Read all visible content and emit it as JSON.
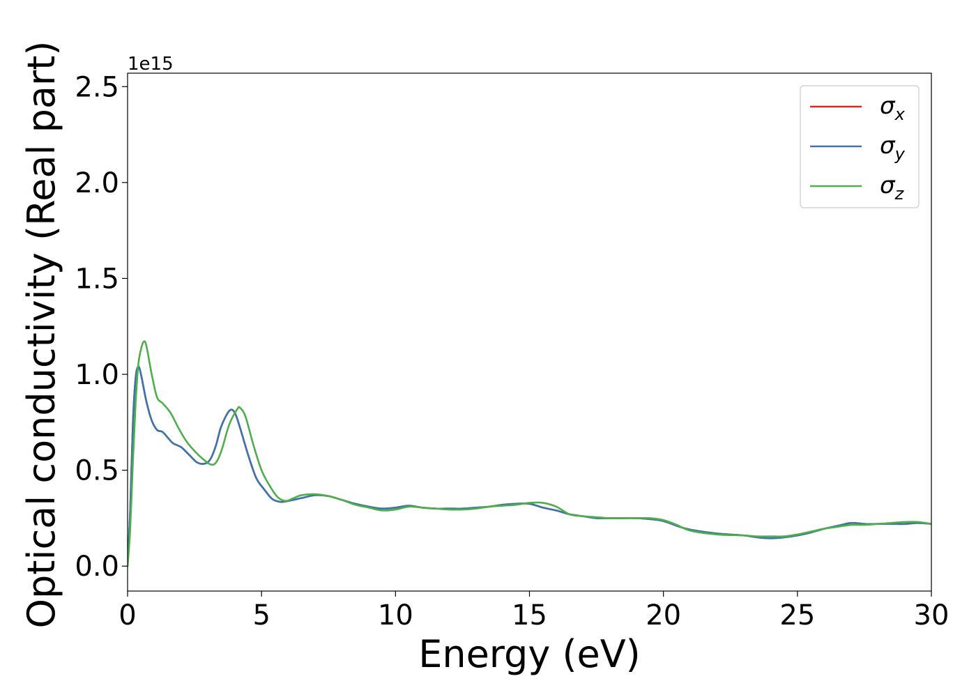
{
  "chart_data": {
    "type": "line",
    "xlabel": "Energy (eV)",
    "ylabel": "Optical conductivity (Real part)",
    "y_offset_label": "1e15",
    "xlim": [
      0,
      30
    ],
    "ylim": [
      -0.13,
      2.57
    ],
    "x_ticks": [
      0,
      5,
      10,
      15,
      20,
      25,
      30
    ],
    "y_ticks": [
      0.0,
      0.5,
      1.0,
      1.5,
      2.0,
      2.5
    ],
    "x_tick_labels": [
      "0",
      "5",
      "10",
      "15",
      "20",
      "25",
      "30"
    ],
    "y_tick_labels": [
      "0.0",
      "0.5",
      "1.0",
      "1.5",
      "2.0",
      "2.5"
    ],
    "grid": false,
    "legend_position": "top-right",
    "series": [
      {
        "name": "σx",
        "symbol": "σ",
        "subscript": "x",
        "color": "#d62728",
        "x": [
          0,
          0.1,
          0.2,
          0.3,
          0.4,
          0.5,
          0.7,
          0.9,
          1.1,
          1.3,
          1.5,
          1.7,
          2.0,
          2.3,
          2.6,
          2.9,
          3.1,
          3.3,
          3.5,
          3.8,
          4.0,
          4.2,
          4.5,
          4.8,
          5.1,
          5.4,
          5.7,
          6.0,
          6.5,
          7.0,
          7.5,
          8.0,
          8.5,
          9.0,
          9.5,
          10.0,
          10.5,
          11.0,
          11.5,
          12.0,
          12.5,
          13.0,
          13.5,
          14.0,
          14.5,
          15.0,
          15.5,
          16.0,
          16.5,
          17.0,
          17.5,
          18.0,
          18.5,
          19.0,
          19.5,
          20.0,
          20.5,
          21.0,
          22.0,
          23.0,
          23.5,
          24.0,
          24.5,
          25.0,
          25.5,
          26.0,
          26.5,
          27.0,
          27.5,
          28.0,
          28.5,
          29.0,
          29.5,
          30.0
        ],
        "y": [
          0.0,
          0.3,
          0.75,
          0.98,
          1.04,
          1.0,
          0.86,
          0.76,
          0.71,
          0.7,
          0.67,
          0.64,
          0.62,
          0.58,
          0.54,
          0.535,
          0.56,
          0.63,
          0.73,
          0.81,
          0.8,
          0.72,
          0.58,
          0.46,
          0.4,
          0.35,
          0.335,
          0.34,
          0.355,
          0.37,
          0.365,
          0.345,
          0.325,
          0.31,
          0.3,
          0.305,
          0.315,
          0.305,
          0.3,
          0.3,
          0.3,
          0.305,
          0.31,
          0.32,
          0.325,
          0.325,
          0.305,
          0.29,
          0.27,
          0.26,
          0.25,
          0.25,
          0.25,
          0.25,
          0.245,
          0.235,
          0.21,
          0.19,
          0.17,
          0.16,
          0.15,
          0.145,
          0.15,
          0.16,
          0.175,
          0.195,
          0.21,
          0.225,
          0.22,
          0.22,
          0.22,
          0.22,
          0.225,
          0.22
        ]
      },
      {
        "name": "σy",
        "symbol": "σ",
        "subscript": "y",
        "color": "#3b75af",
        "x": [
          0,
          0.1,
          0.2,
          0.3,
          0.4,
          0.5,
          0.7,
          0.9,
          1.1,
          1.3,
          1.5,
          1.7,
          2.0,
          2.3,
          2.6,
          2.9,
          3.1,
          3.3,
          3.5,
          3.8,
          4.0,
          4.2,
          4.5,
          4.8,
          5.1,
          5.4,
          5.7,
          6.0,
          6.5,
          7.0,
          7.5,
          8.0,
          8.5,
          9.0,
          9.5,
          10.0,
          10.5,
          11.0,
          11.5,
          12.0,
          12.5,
          13.0,
          13.5,
          14.0,
          14.5,
          15.0,
          15.5,
          16.0,
          16.5,
          17.0,
          17.5,
          18.0,
          18.5,
          19.0,
          19.5,
          20.0,
          20.5,
          21.0,
          22.0,
          23.0,
          23.5,
          24.0,
          24.5,
          25.0,
          25.5,
          26.0,
          26.5,
          27.0,
          27.5,
          28.0,
          28.5,
          29.0,
          29.5,
          30.0
        ],
        "y": [
          0.0,
          0.3,
          0.75,
          0.98,
          1.04,
          1.0,
          0.86,
          0.76,
          0.71,
          0.7,
          0.67,
          0.64,
          0.62,
          0.58,
          0.54,
          0.535,
          0.56,
          0.63,
          0.73,
          0.81,
          0.8,
          0.72,
          0.58,
          0.46,
          0.4,
          0.35,
          0.335,
          0.34,
          0.355,
          0.37,
          0.365,
          0.345,
          0.325,
          0.31,
          0.3,
          0.305,
          0.315,
          0.305,
          0.3,
          0.3,
          0.3,
          0.305,
          0.31,
          0.32,
          0.325,
          0.325,
          0.305,
          0.29,
          0.27,
          0.26,
          0.25,
          0.25,
          0.25,
          0.25,
          0.245,
          0.235,
          0.21,
          0.19,
          0.17,
          0.16,
          0.15,
          0.145,
          0.15,
          0.16,
          0.175,
          0.195,
          0.21,
          0.225,
          0.22,
          0.22,
          0.22,
          0.22,
          0.225,
          0.22
        ]
      },
      {
        "name": "σz",
        "symbol": "σ",
        "subscript": "z",
        "color": "#4daf4a",
        "x": [
          0,
          0.1,
          0.2,
          0.3,
          0.4,
          0.5,
          0.6,
          0.7,
          0.9,
          1.1,
          1.3,
          1.6,
          1.9,
          2.2,
          2.5,
          2.8,
          3.1,
          3.3,
          3.5,
          3.8,
          4.1,
          4.2,
          4.4,
          4.7,
          5.0,
          5.3,
          5.6,
          5.9,
          6.2,
          6.5,
          7.0,
          7.5,
          8.0,
          8.5,
          9.0,
          9.5,
          10.0,
          10.5,
          11.0,
          11.5,
          12.0,
          12.5,
          13.0,
          13.5,
          14.0,
          14.5,
          15.0,
          15.5,
          16.0,
          16.5,
          17.0,
          17.5,
          18.0,
          18.5,
          19.0,
          19.5,
          20.0,
          20.5,
          21.0,
          22.0,
          23.0,
          23.5,
          24.0,
          24.5,
          25.0,
          25.5,
          26.0,
          26.5,
          27.0,
          27.5,
          28.0,
          28.5,
          29.0,
          29.5,
          30.0
        ],
        "y": [
          0.0,
          0.2,
          0.55,
          0.85,
          1.05,
          1.13,
          1.17,
          1.15,
          1.0,
          0.88,
          0.85,
          0.8,
          0.72,
          0.65,
          0.6,
          0.56,
          0.53,
          0.54,
          0.6,
          0.74,
          0.82,
          0.825,
          0.78,
          0.63,
          0.5,
          0.42,
          0.36,
          0.34,
          0.355,
          0.37,
          0.375,
          0.365,
          0.345,
          0.32,
          0.305,
          0.29,
          0.295,
          0.31,
          0.305,
          0.3,
          0.295,
          0.295,
          0.3,
          0.31,
          0.315,
          0.32,
          0.33,
          0.33,
          0.31,
          0.27,
          0.26,
          0.255,
          0.25,
          0.25,
          0.25,
          0.25,
          0.24,
          0.215,
          0.185,
          0.165,
          0.16,
          0.155,
          0.155,
          0.155,
          0.165,
          0.18,
          0.195,
          0.205,
          0.215,
          0.215,
          0.22,
          0.225,
          0.23,
          0.23,
          0.22
        ]
      }
    ]
  }
}
